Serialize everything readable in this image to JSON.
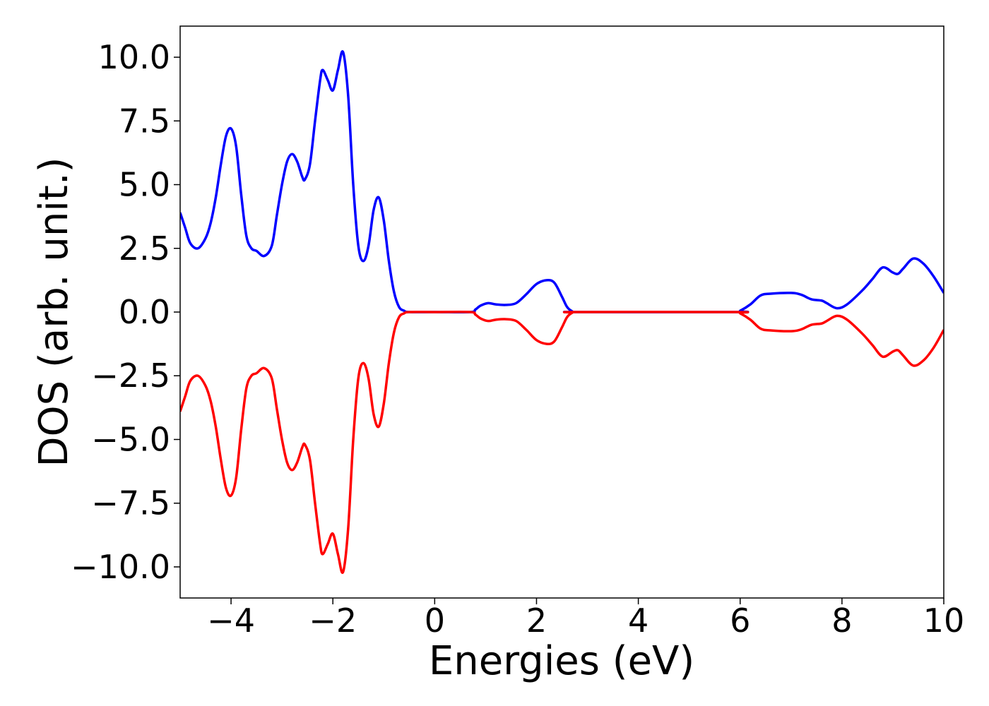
{
  "chart_data": {
    "type": "line",
    "xlabel": "Energies (eV)",
    "ylabel": "DOS (arb. unit.)",
    "x": [
      -5.0,
      -4.9,
      -4.8,
      -4.65,
      -4.5,
      -4.4,
      -4.3,
      -4.2,
      -4.1,
      -4.0,
      -3.9,
      -3.8,
      -3.7,
      -3.6,
      -3.5,
      -3.35,
      -3.2,
      -3.1,
      -3.0,
      -2.9,
      -2.8,
      -2.7,
      -2.6,
      -2.55,
      -2.45,
      -2.35,
      -2.25,
      -2.2,
      -2.1,
      -2.0,
      -1.9,
      -1.8,
      -1.7,
      -1.6,
      -1.5,
      -1.4,
      -1.3,
      -1.2,
      -1.1,
      -1.0,
      -0.9,
      -0.8,
      -0.7,
      -0.6,
      -0.5,
      0.0,
      0.7,
      0.8,
      0.9,
      1.05,
      1.2,
      1.4,
      1.6,
      1.8,
      2.0,
      2.2,
      2.35,
      2.5,
      2.6,
      2.7,
      2.8,
      5.9,
      6.0,
      6.2,
      6.4,
      6.6,
      7.0,
      7.2,
      7.4,
      7.6,
      7.7,
      7.9,
      8.1,
      8.4,
      8.6,
      8.8,
      9.0,
      9.1,
      9.2,
      9.4,
      9.6,
      9.8,
      10.0
    ],
    "series": [
      {
        "color": "#0000ff",
        "values": [
          3.9,
          3.3,
          2.7,
          2.5,
          2.9,
          3.5,
          4.5,
          5.8,
          6.9,
          7.2,
          6.5,
          4.6,
          3.0,
          2.5,
          2.4,
          2.2,
          2.6,
          3.8,
          5.0,
          5.9,
          6.2,
          5.9,
          5.3,
          5.2,
          5.8,
          7.5,
          9.1,
          9.5,
          9.1,
          8.7,
          9.5,
          10.2,
          8.5,
          5.0,
          2.6,
          2.0,
          2.6,
          4.0,
          4.5,
          3.6,
          2.0,
          0.8,
          0.2,
          0.05,
          0,
          0,
          0,
          0.1,
          0.25,
          0.35,
          0.3,
          0.28,
          0.35,
          0.7,
          1.1,
          1.25,
          1.15,
          0.6,
          0.2,
          0.03,
          0,
          0,
          0.05,
          0.3,
          0.65,
          0.72,
          0.75,
          0.68,
          0.5,
          0.45,
          0.35,
          0.15,
          0.3,
          0.85,
          1.3,
          1.75,
          1.55,
          1.5,
          1.7,
          2.1,
          1.9,
          1.4,
          0.75
        ]
      },
      {
        "color": "#ff0000",
        "values": [
          -3.9,
          -3.3,
          -2.7,
          -2.5,
          -2.9,
          -3.5,
          -4.5,
          -5.8,
          -6.9,
          -7.2,
          -6.5,
          -4.6,
          -3.0,
          -2.5,
          -2.4,
          -2.2,
          -2.6,
          -3.8,
          -5.0,
          -5.9,
          -6.2,
          -5.9,
          -5.3,
          -5.2,
          -5.8,
          -7.5,
          -9.1,
          -9.5,
          -9.1,
          -8.7,
          -9.5,
          -10.2,
          -8.5,
          -5.0,
          -2.6,
          -2.0,
          -2.6,
          -4.0,
          -4.5,
          -3.6,
          -2.0,
          -0.8,
          -0.2,
          -0.05,
          0,
          0,
          0,
          -0.1,
          -0.25,
          -0.35,
          -0.3,
          -0.28,
          -0.35,
          -0.7,
          -1.1,
          -1.25,
          -1.15,
          -0.6,
          -0.2,
          -0.03,
          0,
          0,
          -0.05,
          -0.3,
          -0.65,
          -0.72,
          -0.75,
          -0.68,
          -0.5,
          -0.45,
          -0.35,
          -0.15,
          -0.3,
          -0.85,
          -1.3,
          -1.75,
          -1.55,
          -1.5,
          -1.7,
          -2.1,
          -1.9,
          -1.4,
          -0.7
        ]
      }
    ],
    "xlim": [
      -5,
      10
    ],
    "xticks": [
      {
        "value": -4,
        "label": "−4"
      },
      {
        "value": -2,
        "label": "−2"
      },
      0,
      2,
      4,
      6,
      8,
      10
    ],
    "ylim": [
      -11.22,
      11.22
    ],
    "yticks": [
      {
        "value": -10,
        "label": "−10.0"
      },
      {
        "value": -7.5,
        "label": "−7.5"
      },
      {
        "value": -5,
        "label": "−5.0"
      },
      {
        "value": -2.5,
        "label": "−2.5"
      },
      {
        "value": 0,
        "label": "0.0"
      },
      {
        "value": 2.5,
        "label": "2.5"
      },
      {
        "value": 5,
        "label": "5.0"
      },
      {
        "value": 7.5,
        "label": "7.5"
      },
      {
        "value": 10,
        "label": "10.0"
      }
    ],
    "grid": false
  }
}
